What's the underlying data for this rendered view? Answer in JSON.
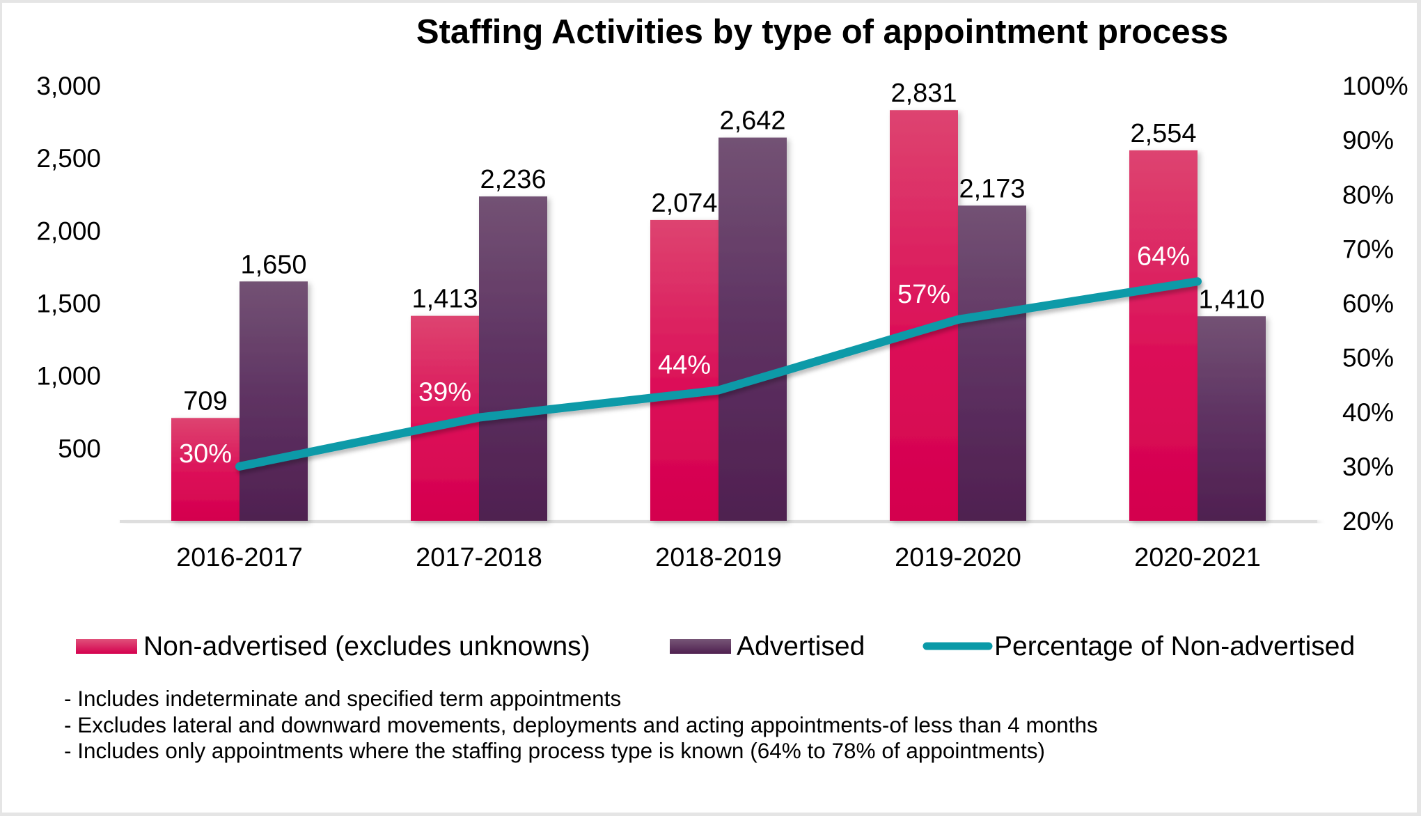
{
  "chart_data": {
    "type": "bar",
    "title": "Staffing Activities  by type of appointment process",
    "categories": [
      "2016-2017",
      "2017-2018",
      "2018-2019",
      "2019-2020",
      "2020-2021"
    ],
    "series": [
      {
        "name": "Non-advertised (excludes unknowns)",
        "kind": "bar",
        "axis": "left",
        "color": "#d9004f",
        "color_top": "#dd4470",
        "values": [
          709,
          1413,
          2074,
          2831,
          2554
        ],
        "labels": [
          "709",
          "1,413",
          "2,074",
          "2,831",
          "2,554"
        ]
      },
      {
        "name": "Advertised",
        "kind": "bar",
        "axis": "left",
        "color": "#512150",
        "color_top": "#735274",
        "values": [
          1650,
          2236,
          2642,
          2173,
          1410
        ],
        "labels": [
          "1,650",
          "2,236",
          "2,642",
          "2,173",
          "1,410"
        ]
      },
      {
        "name": "Percentage of Non-advertised",
        "kind": "line",
        "axis": "right",
        "color": "#0a9aa8",
        "values": [
          30,
          39,
          44,
          57,
          64
        ],
        "labels": [
          "30%",
          "39%",
          "44%",
          "57%",
          "64%"
        ]
      }
    ],
    "y_left": {
      "min": 0,
      "max": 3000,
      "ticks": [
        500,
        1000,
        1500,
        2000,
        2500,
        3000
      ],
      "tick_labels": [
        "500",
        "1,000",
        "1,500",
        "2,000",
        "2,500",
        "3,000"
      ]
    },
    "y_right": {
      "min": 20,
      "max": 100,
      "ticks": [
        20,
        30,
        40,
        50,
        60,
        70,
        80,
        90,
        100
      ],
      "tick_labels": [
        "20%",
        "30%",
        "40%",
        "50%",
        "60%",
        "70%",
        "80%",
        "90%",
        "100%"
      ]
    },
    "xlabel": "",
    "ylabel": "",
    "grid": false,
    "legend_position": "bottom"
  },
  "legend": {
    "items": [
      {
        "label": "Non-advertised (excludes unknowns)",
        "marker": "bar-swatch"
      },
      {
        "label": "Advertised",
        "marker": "bar-swatch"
      },
      {
        "label": "Percentage of Non-advertised",
        "marker": "line-swatch"
      }
    ]
  },
  "footnotes": [
    "- Includes indeterminate and specified term appointments",
    "- Excludes lateral and downward movements, deployments and acting appointments-of less than 4 months",
    "- Includes only appointments where the staffing process type is known (64% to 78% of appointments)"
  ]
}
